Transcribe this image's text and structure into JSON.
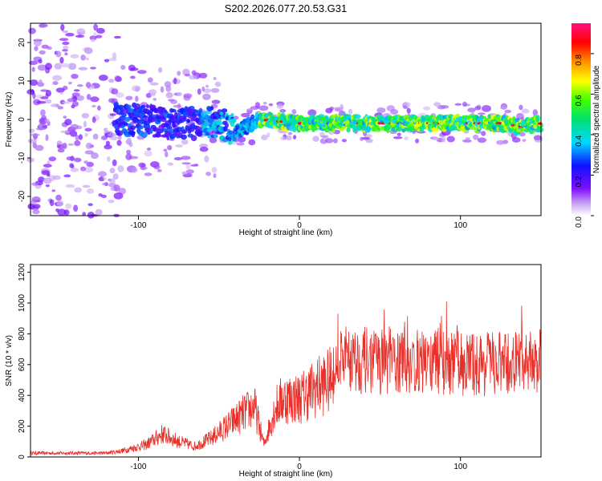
{
  "title": "S202.2026.077.20.53.G31",
  "chart_data": [
    {
      "type": "heatmap",
      "xlabel": "Height of straight line (km)",
      "ylabel": "Frequency (Hz)",
      "xlim": [
        -167,
        150
      ],
      "ylim": [
        -25,
        25
      ],
      "xticks": [
        -100,
        0,
        100
      ],
      "yticks": [
        -20,
        -10,
        0,
        10,
        20
      ],
      "colorbar": {
        "label": "Normalized spectral amplitude",
        "range": [
          0,
          0.95
        ],
        "ticks": [
          0.0,
          0.2,
          0.4,
          0.6,
          0.8
        ],
        "colormap": "rainbow (white-violet-blue-cyan-green-yellow-red-magenta)"
      },
      "ridge": [
        {
          "x": -110,
          "y": 0
        },
        {
          "x": -80,
          "y": -1
        },
        {
          "x": -50,
          "y": -1
        },
        {
          "x": -38,
          "y": -3
        },
        {
          "x": -25,
          "y": 0
        },
        {
          "x": 0,
          "y": -1
        },
        {
          "x": 50,
          "y": -1
        },
        {
          "x": 100,
          "y": -1
        },
        {
          "x": 125,
          "y": -1
        },
        {
          "x": 140,
          "y": -2
        },
        {
          "x": 150,
          "y": -1
        }
      ],
      "grid": false
    },
    {
      "type": "line",
      "xlabel": "Height of straight line (km)",
      "ylabel": "SNR (10 * v/v)",
      "xlim": [
        -167,
        150
      ],
      "ylim": [
        0,
        1250
      ],
      "xticks": [
        -100,
        0,
        100
      ],
      "yticks": [
        0,
        200,
        400,
        600,
        800,
        1000,
        1200
      ],
      "color": "#e8302a",
      "envelope": [
        {
          "x": -167,
          "y": 25
        },
        {
          "x": -120,
          "y": 25
        },
        {
          "x": -110,
          "y": 40
        },
        {
          "x": -95,
          "y": 80
        },
        {
          "x": -85,
          "y": 150
        },
        {
          "x": -75,
          "y": 100
        },
        {
          "x": -65,
          "y": 70
        },
        {
          "x": -55,
          "y": 120
        },
        {
          "x": -45,
          "y": 200
        },
        {
          "x": -35,
          "y": 280
        },
        {
          "x": -28,
          "y": 330
        },
        {
          "x": -22,
          "y": 80
        },
        {
          "x": -15,
          "y": 320
        },
        {
          "x": -10,
          "y": 380
        },
        {
          "x": 0,
          "y": 380
        },
        {
          "x": 10,
          "y": 450
        },
        {
          "x": 20,
          "y": 500
        },
        {
          "x": 25,
          "y": 650
        },
        {
          "x": 35,
          "y": 630
        },
        {
          "x": 50,
          "y": 620
        },
        {
          "x": 70,
          "y": 610
        },
        {
          "x": 90,
          "y": 620
        },
        {
          "x": 110,
          "y": 600
        },
        {
          "x": 130,
          "y": 600
        },
        {
          "x": 150,
          "y": 620
        }
      ],
      "grid": false
    }
  ]
}
